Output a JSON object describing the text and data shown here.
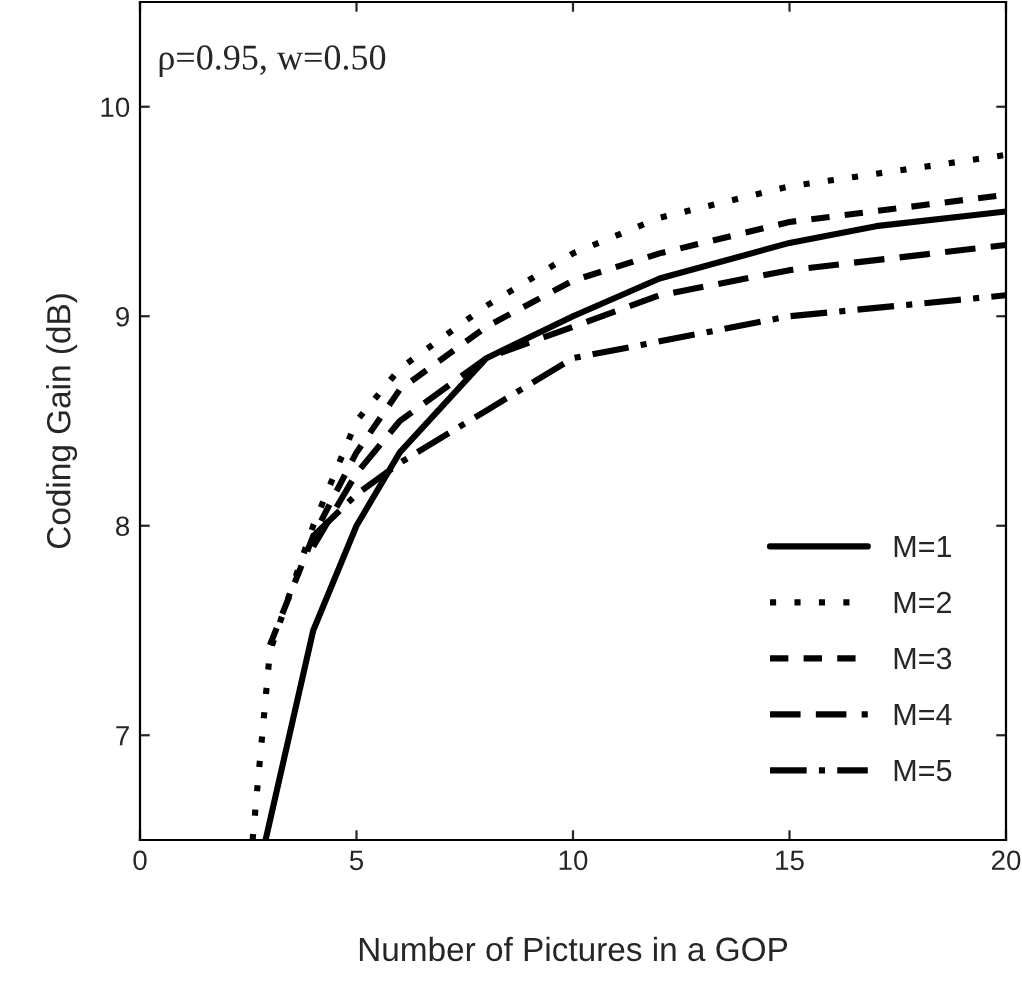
{
  "chart_data": {
    "type": "line",
    "xlabel": "Number of Pictures in a GOP",
    "ylabel": "Coding Gain (dB)",
    "annotations": [
      "ρ=0.95, w=0.50"
    ],
    "xlim": [
      0,
      20
    ],
    "xticks": [
      0,
      5,
      10,
      15,
      20
    ],
    "ylim": [
      6.5,
      10.5
    ],
    "yticks": [
      7,
      8,
      9,
      10
    ],
    "grid": false,
    "legend": "bottom right",
    "marker": "none",
    "series": [
      {
        "name": "M=1",
        "color": "#000000",
        "line_style": "solid",
        "x": [
          2.9,
          4,
          5,
          6,
          8,
          10,
          12,
          15,
          17,
          20
        ],
        "values": [
          6.5,
          7.5,
          8.0,
          8.35,
          8.8,
          9.0,
          9.18,
          9.35,
          9.43,
          9.5
        ]
      },
      {
        "name": "M=2",
        "color": "#000000",
        "line_style": "dotted",
        "x": [
          2.6,
          3,
          4,
          5,
          6,
          8,
          10,
          12,
          15,
          20
        ],
        "values": [
          6.5,
          7.4,
          8.0,
          8.5,
          8.75,
          9.05,
          9.3,
          9.47,
          9.62,
          9.77
        ]
      },
      {
        "name": "M=3",
        "color": "#000000",
        "line_style": "dashed",
        "x": [
          3,
          4,
          5,
          6,
          8,
          10,
          12,
          15,
          20
        ],
        "values": [
          7.43,
          7.95,
          8.35,
          8.65,
          8.95,
          9.17,
          9.3,
          9.45,
          9.58
        ]
      },
      {
        "name": "M=4",
        "color": "#000000",
        "line_style": "longdash",
        "x": [
          4,
          5,
          6,
          8,
          10,
          12,
          15,
          20
        ],
        "values": [
          7.9,
          8.25,
          8.5,
          8.8,
          8.95,
          9.1,
          9.22,
          9.34
        ]
      },
      {
        "name": "M=5",
        "color": "#000000",
        "line_style": "dashdot",
        "x": [
          4,
          5,
          6,
          8,
          10,
          15,
          20
        ],
        "values": [
          7.95,
          8.15,
          8.3,
          8.55,
          8.8,
          9.0,
          9.1
        ]
      }
    ]
  }
}
